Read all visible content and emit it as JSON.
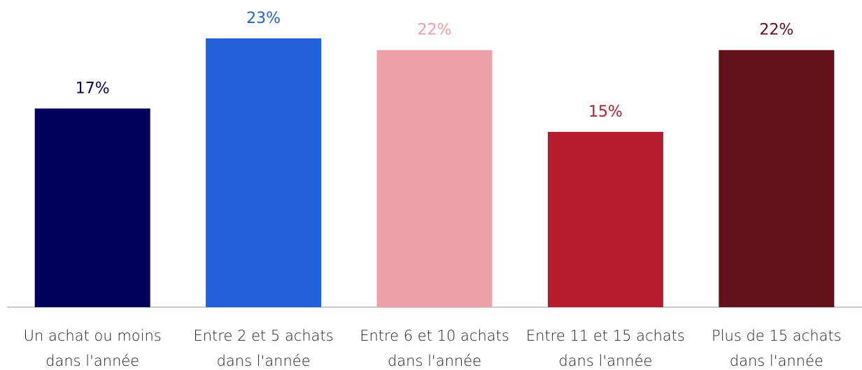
{
  "chart_data": {
    "type": "bar",
    "categories": [
      [
        "Un achat ou moins",
        "dans l'année"
      ],
      [
        "Entre 2 et 5 achats",
        "dans l'année"
      ],
      [
        "Entre 6 et 10 achats",
        "dans l'année"
      ],
      [
        "Entre 11 et 15 achats",
        "dans l'année"
      ],
      [
        "Plus de 15 achats",
        "dans l'année"
      ]
    ],
    "values": [
      17,
      23,
      22,
      15,
      22
    ],
    "value_labels": [
      "17%",
      "23%",
      "22%",
      "15%",
      "22%"
    ],
    "colors": [
      "#02025e",
      "#2361db",
      "#f0a0a8",
      "#b61c2d",
      "#641018"
    ]
  }
}
